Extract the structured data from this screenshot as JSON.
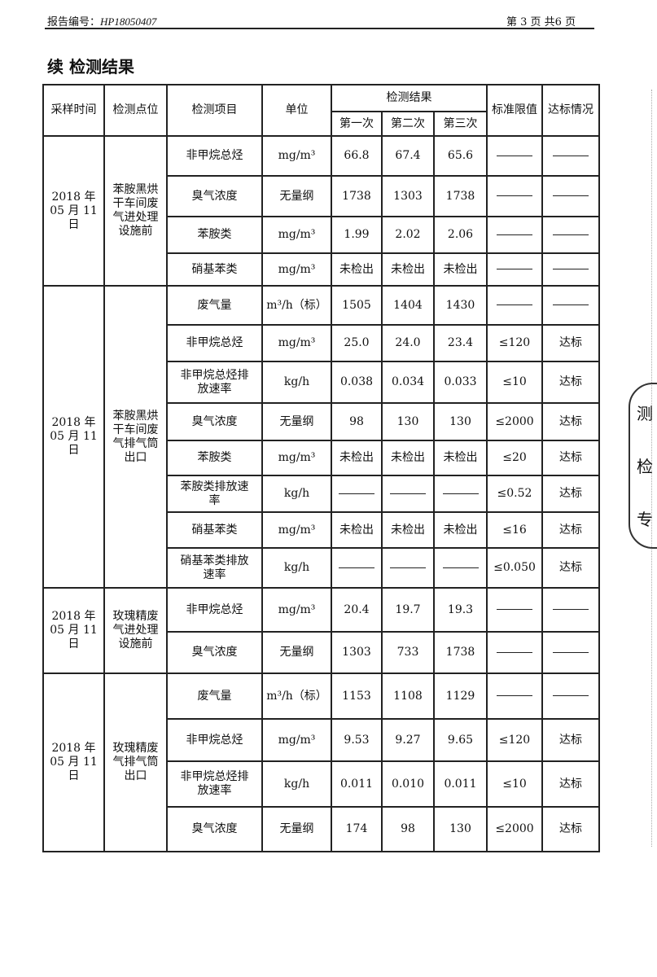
{
  "header": {
    "report_no_label": "报告编号：",
    "report_no": "HP18050407",
    "page": "第 3 页 共6 页"
  },
  "title": "续 检测结果",
  "columns": {
    "time": "采样时间",
    "point": "检测点位",
    "item": "检测项目",
    "unit": "单位",
    "results": "检测结果",
    "first": "第一次",
    "second": "第二次",
    "third": "第三次",
    "limit": "标准限值",
    "status": "达标情况"
  },
  "groups": [
    {
      "time": [
        "2018 年",
        "05 月 11 日"
      ],
      "point": "苯胺黑烘干车间废气进处理设施前",
      "rows": [
        {
          "item": "非甲烷总烃",
          "unit": "mg/m³",
          "v": [
            "66.8",
            "67.4",
            "65.6"
          ],
          "limit": "—",
          "status": "—"
        },
        {
          "item": "臭气浓度",
          "unit": "无量纲",
          "v": [
            "1738",
            "1303",
            "1738"
          ],
          "limit": "—",
          "status": "—"
        },
        {
          "item": "苯胺类",
          "unit": "mg/m³",
          "v": [
            "1.99",
            "2.02",
            "2.06"
          ],
          "limit": "—",
          "status": "—"
        },
        {
          "item": "硝基苯类",
          "unit": "mg/m³",
          "v": [
            "未检出",
            "未检出",
            "未检出"
          ],
          "limit": "—",
          "status": "—"
        }
      ]
    },
    {
      "time": [
        "2018 年",
        "05 月 11 日"
      ],
      "point": "苯胺黑烘干车间废气排气筒出口",
      "rows": [
        {
          "item": "废气量",
          "unit": "m³/h（标）",
          "v": [
            "1505",
            "1404",
            "1430"
          ],
          "limit": "—",
          "status": "—"
        },
        {
          "item": "非甲烷总烃",
          "unit": "mg/m³",
          "v": [
            "25.0",
            "24.0",
            "23.4"
          ],
          "limit": "≤120",
          "status": "达标"
        },
        {
          "item": "非甲烷总烃排放速率",
          "unit": "kg/h",
          "v": [
            "0.038",
            "0.034",
            "0.033"
          ],
          "limit": "≤10",
          "status": "达标"
        },
        {
          "item": "臭气浓度",
          "unit": "无量纲",
          "v": [
            "98",
            "130",
            "130"
          ],
          "limit": "≤2000",
          "status": "达标"
        },
        {
          "item": "苯胺类",
          "unit": "mg/m³",
          "v": [
            "未检出",
            "未检出",
            "未检出"
          ],
          "limit": "≤20",
          "status": "达标"
        },
        {
          "item": "苯胺类排放速率",
          "unit": "kg/h",
          "v": [
            "—",
            "—",
            "—"
          ],
          "limit": "≤0.52",
          "status": "达标"
        },
        {
          "item": "硝基苯类",
          "unit": "mg/m³",
          "v": [
            "未检出",
            "未检出",
            "未检出"
          ],
          "limit": "≤16",
          "status": "达标"
        },
        {
          "item": "硝基苯类排放速率",
          "unit": "kg/h",
          "v": [
            "—",
            "—",
            "—"
          ],
          "limit": "≤0.050",
          "status": "达标"
        }
      ]
    },
    {
      "time": [
        "2018 年",
        "05 月 11 日"
      ],
      "point": "玫瑰精废气进处理设施前",
      "rows": [
        {
          "item": "非甲烷总烃",
          "unit": "mg/m³",
          "v": [
            "20.4",
            "19.7",
            "19.3"
          ],
          "limit": "—",
          "status": "—"
        },
        {
          "item": "臭气浓度",
          "unit": "无量纲",
          "v": [
            "1303",
            "733",
            "1738"
          ],
          "limit": "—",
          "status": "—"
        }
      ]
    },
    {
      "time": [
        "2018 年",
        "05 月 11 日"
      ],
      "point": "玫瑰精废气排气筒出口",
      "rows": [
        {
          "item": "废气量",
          "unit": "m³/h（标）",
          "v": [
            "1153",
            "1108",
            "1129"
          ],
          "limit": "—",
          "status": "—"
        },
        {
          "item": "非甲烷总烃",
          "unit": "mg/m³",
          "v": [
            "9.53",
            "9.27",
            "9.65"
          ],
          "limit": "≤120",
          "status": "达标"
        },
        {
          "item": "非甲烷总烃排放速率",
          "unit": "kg/h",
          "v": [
            "0.011",
            "0.010",
            "0.011"
          ],
          "limit": "≤10",
          "status": "达标"
        },
        {
          "item": "臭气浓度",
          "unit": "无量纲",
          "v": [
            "174",
            "98",
            "130"
          ],
          "limit": "≤2000",
          "status": "达标"
        }
      ]
    }
  ],
  "stamp": {
    "text": [
      "测",
      "检",
      "专"
    ]
  }
}
